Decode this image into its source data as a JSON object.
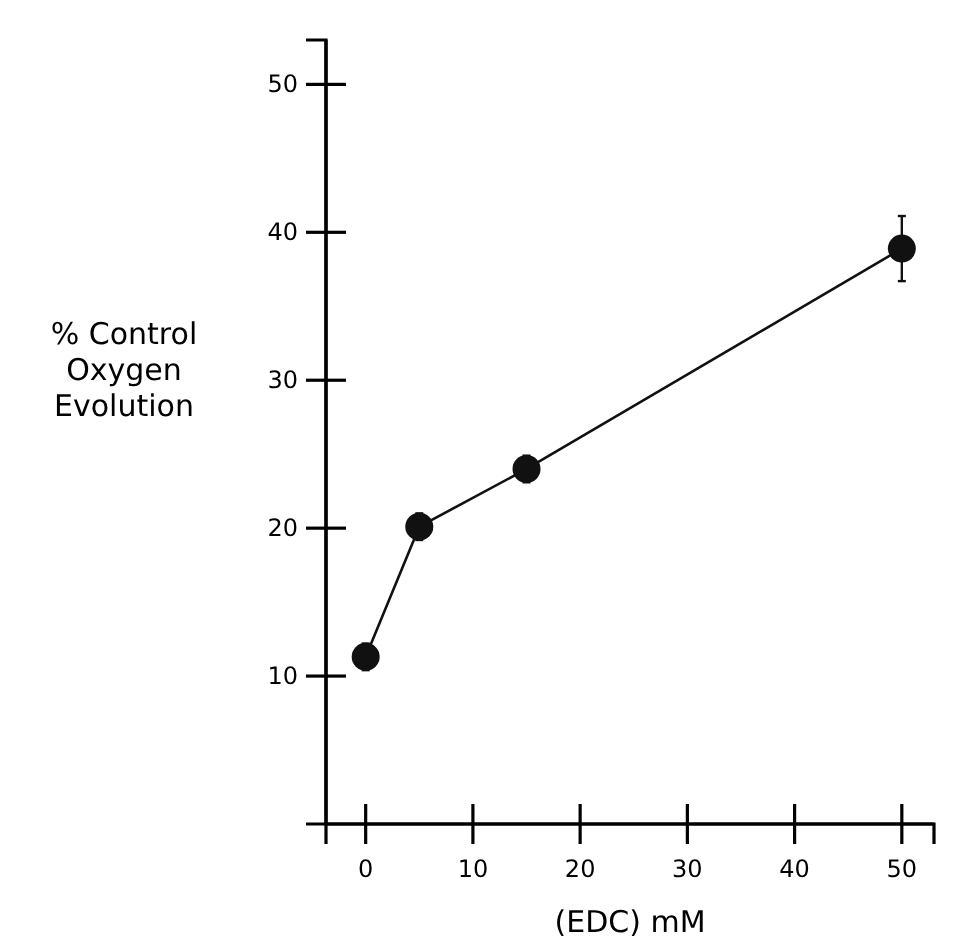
{
  "chart_data": {
    "type": "line",
    "xlabel": "(EDC)  mM",
    "ylabel": "% Control\nOxygen\nEvolution",
    "x": [
      0,
      5,
      15,
      50
    ],
    "series": [
      {
        "color": "#111111",
        "values": [
          11.3,
          20.1,
          24.0,
          38.9
        ],
        "errors": [
          0.9,
          0.9,
          0.9,
          2.2
        ]
      }
    ],
    "xlim": [
      -3.7,
      53
    ],
    "ylim": [
      0,
      53
    ],
    "xticks": [
      0,
      10,
      20,
      30,
      40,
      50
    ],
    "yticks": [
      10,
      20,
      30,
      40,
      50
    ],
    "marker": "circle",
    "line_style": "solid",
    "grid": false
  }
}
